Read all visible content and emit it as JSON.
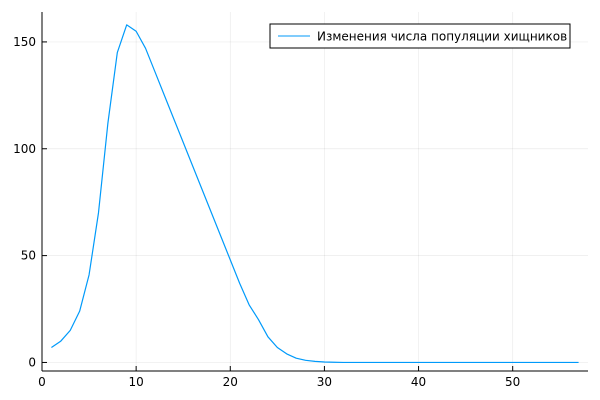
{
  "chart_data": {
    "type": "line",
    "title": "",
    "xlabel": "",
    "ylabel": "",
    "xlim": [
      0,
      58
    ],
    "ylim": [
      -4,
      164
    ],
    "grid": true,
    "legend": "top-right",
    "x_ticks": [
      {
        "value": 0,
        "label": "0"
      },
      {
        "value": 10,
        "label": "10"
      },
      {
        "value": 20,
        "label": "20"
      },
      {
        "value": 30,
        "label": "30"
      },
      {
        "value": 40,
        "label": "40"
      },
      {
        "value": 50,
        "label": "50"
      }
    ],
    "y_ticks": [
      {
        "value": 0,
        "label": "0"
      },
      {
        "value": 50,
        "label": "50"
      },
      {
        "value": 100,
        "label": "100"
      },
      {
        "value": 150,
        "label": "150"
      }
    ],
    "series": [
      {
        "name": "Изменения числа популяции хищников",
        "color": "#009AFA",
        "x": [
          1,
          2,
          3,
          4,
          5,
          6,
          7,
          8,
          9,
          10,
          11,
          12,
          13,
          14,
          15,
          16,
          17,
          18,
          19,
          20,
          21,
          22,
          23,
          24,
          25,
          26,
          27,
          28,
          29,
          30,
          31,
          32,
          33,
          34,
          35,
          36,
          37,
          38,
          39,
          40,
          41,
          42,
          43,
          44,
          45,
          46,
          47,
          48,
          49,
          50,
          51,
          52,
          53,
          54,
          55,
          56,
          57
        ],
        "y": [
          7,
          10,
          15,
          24,
          41,
          70,
          112,
          145,
          158,
          155,
          147,
          136,
          125,
          114,
          103,
          92,
          81,
          70,
          59,
          48,
          37,
          27,
          20,
          12,
          7,
          4,
          2,
          1,
          0.5,
          0.2,
          0.1,
          0,
          0,
          0,
          0,
          0,
          0,
          0,
          0,
          0,
          0,
          0,
          0,
          0,
          0,
          0,
          0,
          0,
          0,
          0,
          0,
          0,
          0,
          0,
          0,
          0,
          0
        ]
      }
    ]
  }
}
